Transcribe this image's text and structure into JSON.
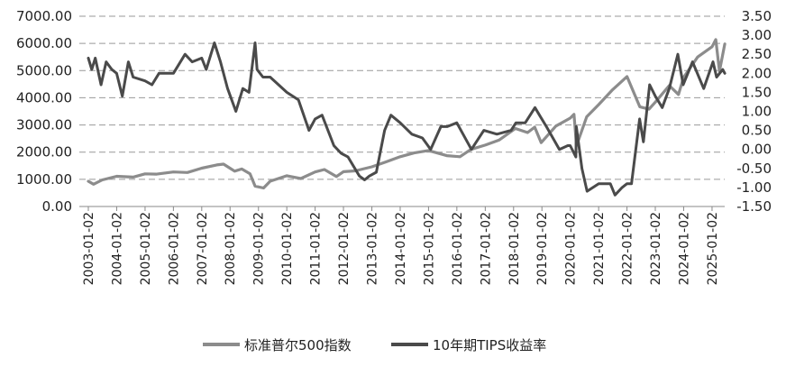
{
  "chart_data": {
    "type": "line",
    "title": "",
    "xlabel": "",
    "ylabel_left": "",
    "ylabel_right": "",
    "grid": "horizontal dashed",
    "legend_position": "bottom-center",
    "y_left": {
      "range": [
        0,
        7000
      ],
      "ticks": [
        "0.00",
        "1000.00",
        "2000.00",
        "3000.00",
        "4000.00",
        "5000.00",
        "6000.00",
        "7000.00"
      ]
    },
    "y_right": {
      "range": [
        -1.5,
        3.5
      ],
      "ticks": [
        "-1.50",
        "-1.00",
        "-0.50",
        "0.00",
        "0.50",
        "1.00",
        "1.50",
        "2.00",
        "2.50",
        "3.00",
        "3.50"
      ]
    },
    "x_ticks": [
      "2003-01-02",
      "2004-01-02",
      "2005-01-02",
      "2006-01-02",
      "2007-01-02",
      "2008-01-02",
      "2009-01-02",
      "2010-01-02",
      "2011-01-02",
      "2012-01-02",
      "2013-01-02",
      "2014-01-02",
      "2015-01-02",
      "2016-01-02",
      "2017-01-02",
      "2018-01-02",
      "2019-01-02",
      "2020-01-02",
      "2021-01-02",
      "2022-01-02",
      "2023-01-02",
      "2024-01-02",
      "2025-01-02"
    ],
    "series": [
      {
        "name": "标准普尔500指数",
        "axis": "left",
        "color": "#8c8c8c",
        "points": [
          [
            "2003-01-02",
            930
          ],
          [
            "2003-03-10",
            820
          ],
          [
            "2003-07-01",
            980
          ],
          [
            "2004-01-02",
            1110
          ],
          [
            "2004-08-01",
            1080
          ],
          [
            "2005-01-02",
            1200
          ],
          [
            "2005-06-01",
            1190
          ],
          [
            "2006-01-02",
            1270
          ],
          [
            "2006-07-01",
            1250
          ],
          [
            "2007-01-02",
            1410
          ],
          [
            "2007-07-15",
            1530
          ],
          [
            "2007-10-10",
            1560
          ],
          [
            "2008-03-01",
            1300
          ],
          [
            "2008-06-01",
            1380
          ],
          [
            "2008-09-15",
            1200
          ],
          [
            "2008-11-20",
            750
          ],
          [
            "2009-03-09",
            680
          ],
          [
            "2009-06-01",
            930
          ],
          [
            "2010-01-02",
            1130
          ],
          [
            "2010-07-01",
            1030
          ],
          [
            "2011-01-02",
            1270
          ],
          [
            "2011-05-01",
            1360
          ],
          [
            "2011-10-03",
            1100
          ],
          [
            "2012-01-02",
            1280
          ],
          [
            "2012-06-01",
            1310
          ],
          [
            "2013-01-02",
            1460
          ],
          [
            "2013-07-01",
            1640
          ],
          [
            "2014-01-02",
            1830
          ],
          [
            "2014-07-01",
            1970
          ],
          [
            "2015-01-02",
            2060
          ],
          [
            "2015-08-25",
            1870
          ],
          [
            "2016-02-11",
            1830
          ],
          [
            "2016-07-01",
            2100
          ],
          [
            "2017-01-02",
            2260
          ],
          [
            "2017-07-01",
            2450
          ],
          [
            "2018-01-26",
            2870
          ],
          [
            "2018-07-01",
            2720
          ],
          [
            "2018-10-01",
            2920
          ],
          [
            "2018-12-24",
            2350
          ],
          [
            "2019-07-01",
            2960
          ],
          [
            "2020-01-02",
            3250
          ],
          [
            "2020-02-19",
            3390
          ],
          [
            "2020-03-23",
            2240
          ],
          [
            "2020-08-01",
            3300
          ],
          [
            "2021-01-02",
            3750
          ],
          [
            "2021-07-01",
            4300
          ],
          [
            "2022-01-02",
            4780
          ],
          [
            "2022-06-16",
            3670
          ],
          [
            "2022-10-12",
            3580
          ],
          [
            "2023-01-02",
            3840
          ],
          [
            "2023-07-01",
            4450
          ],
          [
            "2023-10-27",
            4120
          ],
          [
            "2024-01-02",
            4750
          ],
          [
            "2024-07-01",
            5500
          ],
          [
            "2025-01-02",
            5880
          ],
          [
            "2025-02-19",
            6140
          ],
          [
            "2025-04-08",
            4980
          ],
          [
            "2025-06-15",
            5980
          ]
        ]
      },
      {
        "name": "10年期TIPS收益率",
        "axis": "right",
        "color": "#4a4a4a",
        "points": [
          [
            "2003-01-02",
            2.4
          ],
          [
            "2003-02-15",
            2.1
          ],
          [
            "2003-04-01",
            2.4
          ],
          [
            "2003-06-15",
            1.7
          ],
          [
            "2003-08-20",
            2.3
          ],
          [
            "2003-11-01",
            2.1
          ],
          [
            "2004-01-02",
            2.0
          ],
          [
            "2004-03-15",
            1.4
          ],
          [
            "2004-06-01",
            2.3
          ],
          [
            "2004-08-01",
            1.9
          ],
          [
            "2005-01-02",
            1.8
          ],
          [
            "2005-04-01",
            1.7
          ],
          [
            "2005-07-01",
            2.0
          ],
          [
            "2006-01-02",
            2.0
          ],
          [
            "2006-06-01",
            2.5
          ],
          [
            "2006-09-01",
            2.3
          ],
          [
            "2007-01-02",
            2.4
          ],
          [
            "2007-03-01",
            2.1
          ],
          [
            "2007-06-15",
            2.8
          ],
          [
            "2007-09-01",
            2.3
          ],
          [
            "2007-12-01",
            1.6
          ],
          [
            "2008-03-17",
            1.0
          ],
          [
            "2008-06-15",
            1.6
          ],
          [
            "2008-09-01",
            1.5
          ],
          [
            "2008-11-20",
            2.8
          ],
          [
            "2008-12-15",
            2.1
          ],
          [
            "2009-03-01",
            1.9
          ],
          [
            "2009-06-01",
            1.9
          ],
          [
            "2010-01-02",
            1.5
          ],
          [
            "2010-06-01",
            1.3
          ],
          [
            "2010-10-15",
            0.5
          ],
          [
            "2011-01-02",
            0.8
          ],
          [
            "2011-04-01",
            0.9
          ],
          [
            "2011-09-01",
            0.1
          ],
          [
            "2011-12-01",
            -0.1
          ],
          [
            "2012-03-01",
            -0.2
          ],
          [
            "2012-07-25",
            -0.7
          ],
          [
            "2012-10-01",
            -0.8
          ],
          [
            "2012-12-01",
            -0.7
          ],
          [
            "2013-03-01",
            -0.6
          ],
          [
            "2013-06-15",
            0.5
          ],
          [
            "2013-09-05",
            0.9
          ],
          [
            "2014-01-02",
            0.7
          ],
          [
            "2014-06-01",
            0.4
          ],
          [
            "2014-10-15",
            0.3
          ],
          [
            "2015-01-30",
            0.0
          ],
          [
            "2015-06-10",
            0.6
          ],
          [
            "2015-09-01",
            0.6
          ],
          [
            "2016-01-02",
            0.7
          ],
          [
            "2016-07-08",
            0.0
          ],
          [
            "2016-12-15",
            0.5
          ],
          [
            "2017-06-01",
            0.4
          ],
          [
            "2017-12-01",
            0.5
          ],
          [
            "2018-02-01",
            0.7
          ],
          [
            "2018-06-01",
            0.7
          ],
          [
            "2018-10-05",
            1.1
          ],
          [
            "2018-12-01",
            0.9
          ],
          [
            "2019-03-01",
            0.6
          ],
          [
            "2019-08-15",
            0.0
          ],
          [
            "2019-12-01",
            0.1
          ],
          [
            "2020-01-02",
            0.1
          ],
          [
            "2020-03-15",
            -0.2
          ],
          [
            "2020-03-20",
            0.6
          ],
          [
            "2020-06-01",
            -0.5
          ],
          [
            "2020-08-06",
            -1.1
          ],
          [
            "2021-01-02",
            -0.9
          ],
          [
            "2021-06-01",
            -0.9
          ],
          [
            "2021-08-01",
            -1.2
          ],
          [
            "2021-11-01",
            -1.0
          ],
          [
            "2022-01-02",
            -0.9
          ],
          [
            "2022-03-01",
            -0.9
          ],
          [
            "2022-06-14",
            0.8
          ],
          [
            "2022-08-01",
            0.2
          ],
          [
            "2022-10-21",
            1.7
          ],
          [
            "2023-01-02",
            1.4
          ],
          [
            "2023-04-01",
            1.1
          ],
          [
            "2023-07-01",
            1.6
          ],
          [
            "2023-10-19",
            2.5
          ],
          [
            "2023-12-27",
            1.7
          ],
          [
            "2024-04-25",
            2.3
          ],
          [
            "2024-09-16",
            1.6
          ],
          [
            "2025-01-14",
            2.3
          ],
          [
            "2025-03-01",
            1.9
          ],
          [
            "2025-05-20",
            2.1
          ],
          [
            "2025-06-15",
            2.0
          ]
        ]
      }
    ]
  }
}
